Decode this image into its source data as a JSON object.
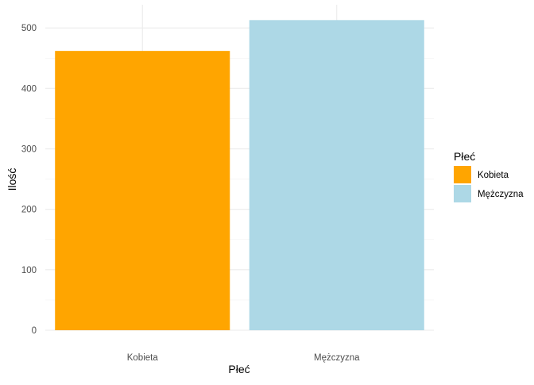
{
  "chart_data": {
    "type": "bar",
    "categories": [
      "Kobieta",
      "Mężczyzna"
    ],
    "values": [
      462,
      513
    ],
    "colors": [
      "#FFA500",
      "#ADD8E6"
    ],
    "xlabel": "Płeć",
    "ylabel": "Ilość",
    "ylim": [
      0,
      513
    ],
    "y_ticks": [
      0,
      100,
      200,
      300,
      400,
      500
    ],
    "grid": true,
    "legend": {
      "title": "Płeć",
      "placement": "right",
      "entries": [
        "Kobieta",
        "Mężczyzna"
      ]
    }
  }
}
